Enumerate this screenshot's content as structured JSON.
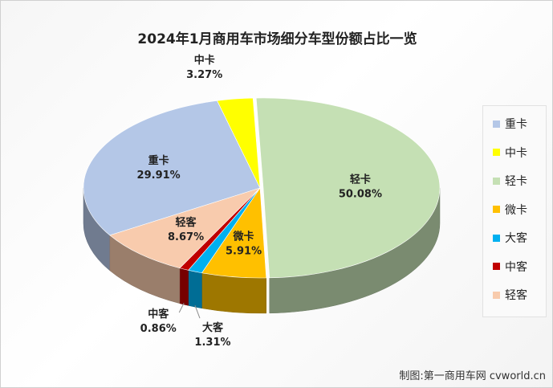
{
  "chart_data": {
    "type": "pie",
    "title": "2024年1月商用车市场细分车型份额占比一览",
    "slices": [
      {
        "name": "重卡",
        "value": 29.91,
        "label": "29.91%",
        "color": "#b4c7e7"
      },
      {
        "name": "中卡",
        "value": 3.27,
        "label": "3.27%",
        "color": "#ffff00"
      },
      {
        "name": "轻卡",
        "value": 50.08,
        "label": "50.08%",
        "color": "#c5e0b4"
      },
      {
        "name": "微卡",
        "value": 5.91,
        "label": "5.91%",
        "color": "#ffc000"
      },
      {
        "name": "大客",
        "value": 1.31,
        "label": "1.31%",
        "color": "#00b0f0"
      },
      {
        "name": "中客",
        "value": 0.86,
        "label": "0.86%",
        "color": "#c00000"
      },
      {
        "name": "轻客",
        "value": 8.67,
        "label": "8.67%",
        "color": "#f8cbad"
      }
    ],
    "legend_position": "right",
    "style": "3d-exploded"
  },
  "credit": "制图:第一商用车网 cvworld.cn"
}
